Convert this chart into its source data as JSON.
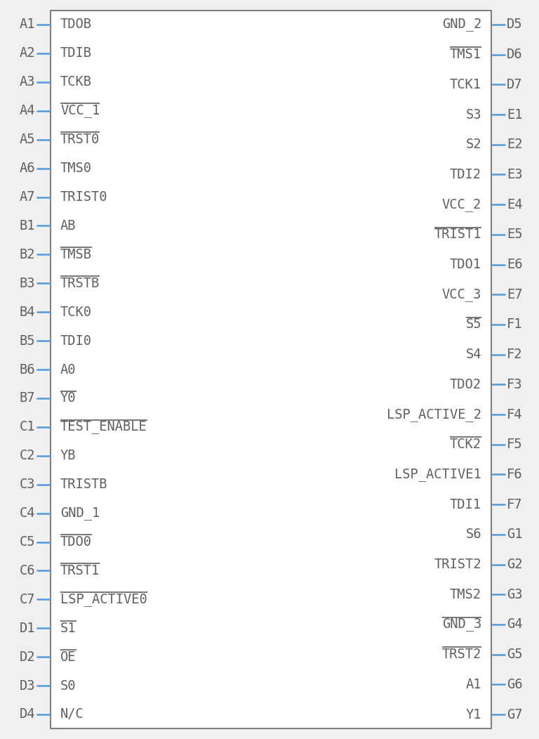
{
  "bg_color": "#f0f0f0",
  "box_color": "#ffffff",
  "box_border_color": "#808080",
  "pin_color": "#5599dd",
  "text_color": "#606060",
  "figsize": [
    7.68,
    10.52
  ],
  "dpi": 100,
  "left_pins": [
    {
      "label": "A1",
      "signal": "TDOB",
      "overline_chars": ""
    },
    {
      "label": "A2",
      "signal": "TDIB",
      "overline_chars": ""
    },
    {
      "label": "A3",
      "signal": "TCKB",
      "overline_chars": ""
    },
    {
      "label": "A4",
      "signal": "VCC_1",
      "overline_chars": "VCC_1"
    },
    {
      "label": "A5",
      "signal": "TRST0",
      "overline_chars": "TRST0"
    },
    {
      "label": "A6",
      "signal": "TMS0",
      "overline_chars": ""
    },
    {
      "label": "A7",
      "signal": "TRIST0",
      "overline_chars": ""
    },
    {
      "label": "B1",
      "signal": "AB",
      "overline_chars": ""
    },
    {
      "label": "B2",
      "signal": "TMSB",
      "overline_chars": "TMSB"
    },
    {
      "label": "B3",
      "signal": "TRSTB",
      "overline_chars": "TRSTB"
    },
    {
      "label": "B4",
      "signal": "TCK0",
      "overline_chars": ""
    },
    {
      "label": "B5",
      "signal": "TDI0",
      "overline_chars": ""
    },
    {
      "label": "B6",
      "signal": "A0",
      "overline_chars": ""
    },
    {
      "label": "B7",
      "signal": "Y0",
      "overline_chars": "Y0"
    },
    {
      "label": "C1",
      "signal": "TEST_ENABLE",
      "overline_chars": "TEST_ENABLE"
    },
    {
      "label": "C2",
      "signal": "YB",
      "overline_chars": ""
    },
    {
      "label": "C3",
      "signal": "TRISTB",
      "overline_chars": ""
    },
    {
      "label": "C4",
      "signal": "GND_1",
      "overline_chars": ""
    },
    {
      "label": "C5",
      "signal": "TDO0",
      "overline_chars": "TDO0"
    },
    {
      "label": "C6",
      "signal": "TRST1",
      "overline_chars": "TRST1"
    },
    {
      "label": "C7",
      "signal": "LSP_ACTIVE0",
      "overline_chars": "LSP_ACTIVE0"
    },
    {
      "label": "D1",
      "signal": "S1",
      "overline_chars": "S1"
    },
    {
      "label": "D2",
      "signal": "OE",
      "overline_chars": "OE"
    },
    {
      "label": "D3",
      "signal": "S0",
      "overline_chars": ""
    },
    {
      "label": "D4",
      "signal": "N/C",
      "overline_chars": ""
    }
  ],
  "right_pins": [
    {
      "label": "D5",
      "signal": "GND_2",
      "overline_chars": ""
    },
    {
      "label": "D6",
      "signal": "TMS1",
      "overline_chars": "TMS1"
    },
    {
      "label": "D7",
      "signal": "TCK1",
      "overline_chars": ""
    },
    {
      "label": "E1",
      "signal": "S3",
      "overline_chars": ""
    },
    {
      "label": "E2",
      "signal": "S2",
      "overline_chars": ""
    },
    {
      "label": "E3",
      "signal": "TDI2",
      "overline_chars": ""
    },
    {
      "label": "E4",
      "signal": "VCC_2",
      "overline_chars": ""
    },
    {
      "label": "E5",
      "signal": "TRIST1",
      "overline_chars": "TRIST1"
    },
    {
      "label": "E6",
      "signal": "TDO1",
      "overline_chars": ""
    },
    {
      "label": "E7",
      "signal": "VCC_3",
      "overline_chars": ""
    },
    {
      "label": "F1",
      "signal": "S5",
      "overline_chars": "S5"
    },
    {
      "label": "F2",
      "signal": "S4",
      "overline_chars": ""
    },
    {
      "label": "F3",
      "signal": "TDO2",
      "overline_chars": ""
    },
    {
      "label": "F4",
      "signal": "LSP_ACTIVE_2",
      "overline_chars": ""
    },
    {
      "label": "F5",
      "signal": "TCK2",
      "overline_chars": "TCK2"
    },
    {
      "label": "F6",
      "signal": "LSP_ACTIVE1",
      "overline_chars": ""
    },
    {
      "label": "F7",
      "signal": "TDI1",
      "overline_chars": ""
    },
    {
      "label": "G1",
      "signal": "S6",
      "overline_chars": ""
    },
    {
      "label": "G2",
      "signal": "TRIST2",
      "overline_chars": ""
    },
    {
      "label": "G3",
      "signal": "TMS2",
      "overline_chars": ""
    },
    {
      "label": "G4",
      "signal": "GND_3",
      "overline_chars": "GND_3"
    },
    {
      "label": "G5",
      "signal": "TRST2",
      "overline_chars": "TRST2"
    },
    {
      "label": "G6",
      "signal": "A1",
      "overline_chars": ""
    },
    {
      "label": "G7",
      "signal": "Y1",
      "overline_chars": ""
    }
  ]
}
